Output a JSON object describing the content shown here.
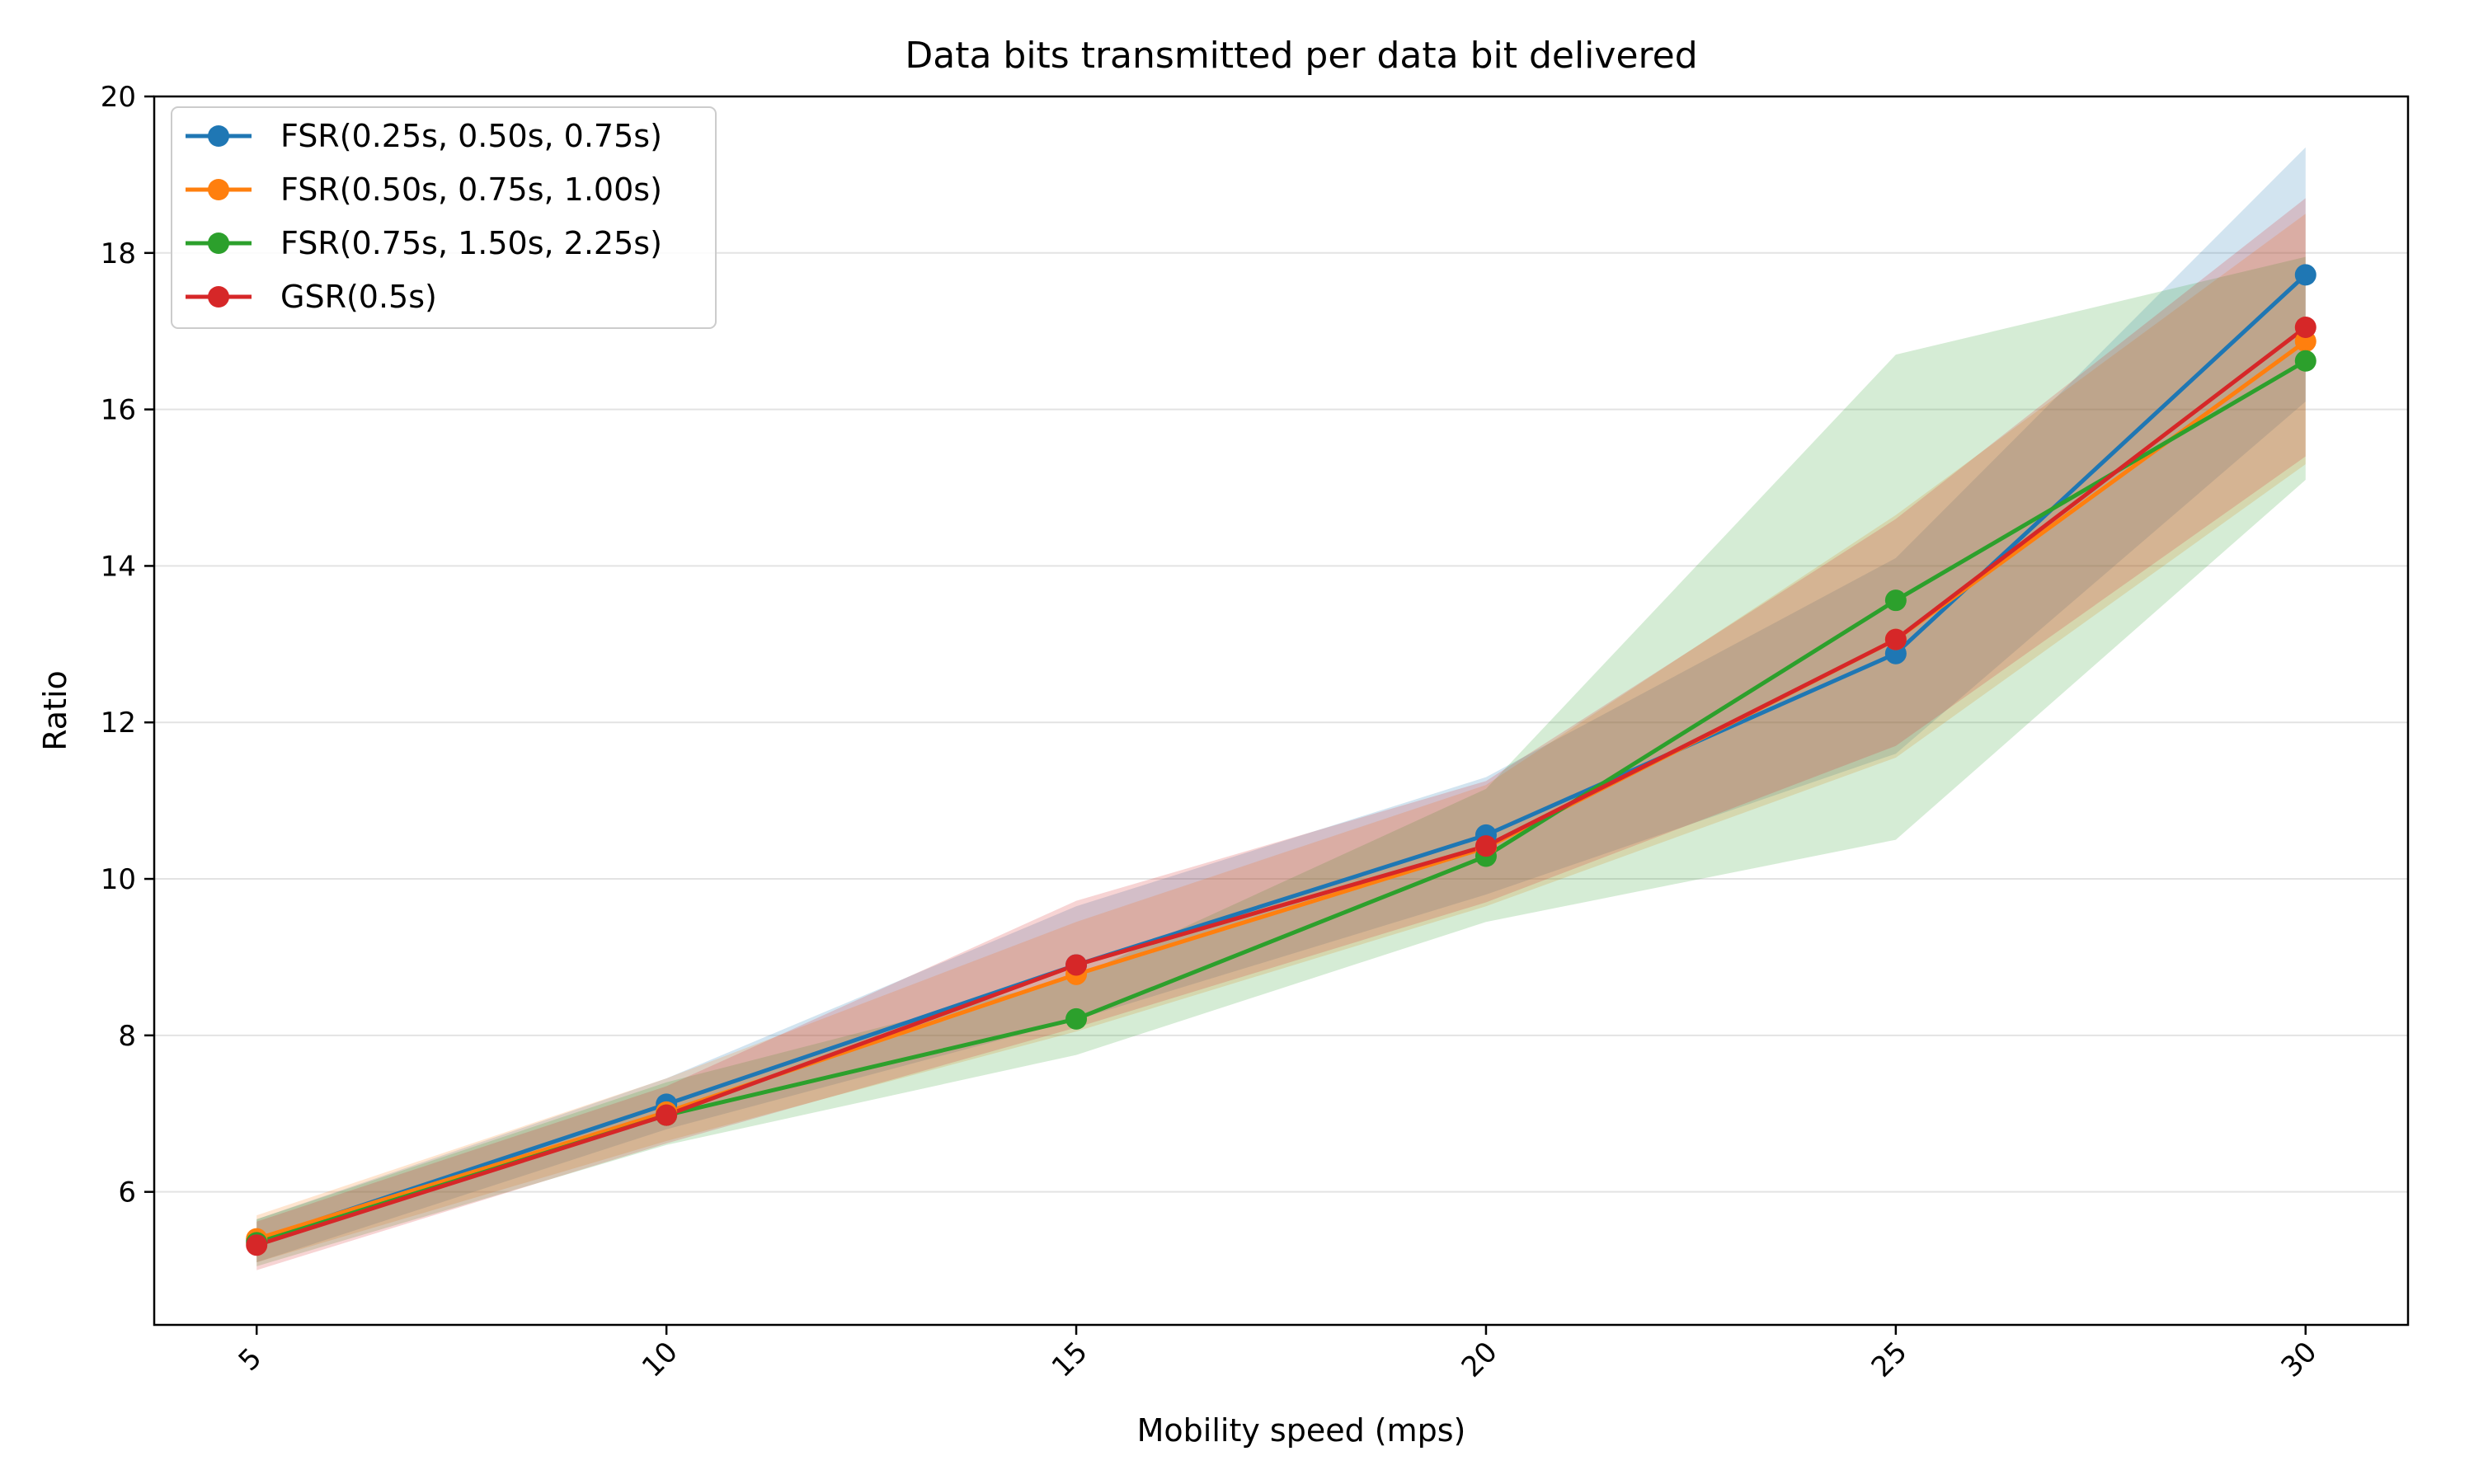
{
  "chart_data": {
    "type": "line",
    "title": "Data bits transmitted per data bit delivered",
    "xlabel": "Mobility speed (mps)",
    "ylabel": "Ratio",
    "x": [
      5,
      10,
      15,
      20,
      25,
      30
    ],
    "x_ticks": [
      "5",
      "10",
      "15",
      "20",
      "25",
      "30"
    ],
    "y_ticks": [
      "6",
      "8",
      "10",
      "12",
      "14",
      "16",
      "18",
      "20"
    ],
    "ylim": [
      4.3,
      20.0
    ],
    "xlim": [
      3.75,
      31.25
    ],
    "grid": "horizontal",
    "legend_position": "upper-left",
    "series": [
      {
        "name": "FSR(0.25s, 0.50s, 0.75s)",
        "color": "#1f77b4",
        "values": [
          5.38,
          7.12,
          8.9,
          10.56,
          12.88,
          17.72
        ],
        "band_low": [
          5.1,
          6.8,
          8.2,
          9.8,
          11.6,
          16.1
        ],
        "band_high": [
          5.65,
          7.45,
          9.65,
          11.3,
          14.1,
          19.35
        ]
      },
      {
        "name": "FSR(0.50s, 0.75s, 1.00s)",
        "color": "#ff7f0e",
        "values": [
          5.4,
          7.02,
          8.78,
          10.4,
          13.06,
          16.87
        ],
        "band_low": [
          5.1,
          6.65,
          8.05,
          9.65,
          11.55,
          15.3
        ],
        "band_high": [
          5.7,
          7.45,
          9.45,
          11.2,
          14.65,
          18.5
        ]
      },
      {
        "name": "FSR(0.75s, 1.50s, 2.25s)",
        "color": "#2ca02c",
        "values": [
          5.35,
          6.98,
          8.21,
          10.29,
          13.56,
          16.62
        ],
        "band_low": [
          5.05,
          6.6,
          7.75,
          9.45,
          10.5,
          15.1
        ],
        "band_high": [
          5.65,
          7.4,
          8.75,
          11.15,
          16.7,
          17.95
        ]
      },
      {
        "name": "GSR(0.5s)",
        "color": "#d62728",
        "values": [
          5.32,
          6.98,
          8.9,
          10.42,
          13.06,
          17.05
        ],
        "band_low": [
          5.0,
          6.62,
          8.1,
          9.7,
          11.7,
          15.4
        ],
        "band_high": [
          5.62,
          7.35,
          9.72,
          11.25,
          14.6,
          18.7
        ]
      }
    ]
  }
}
